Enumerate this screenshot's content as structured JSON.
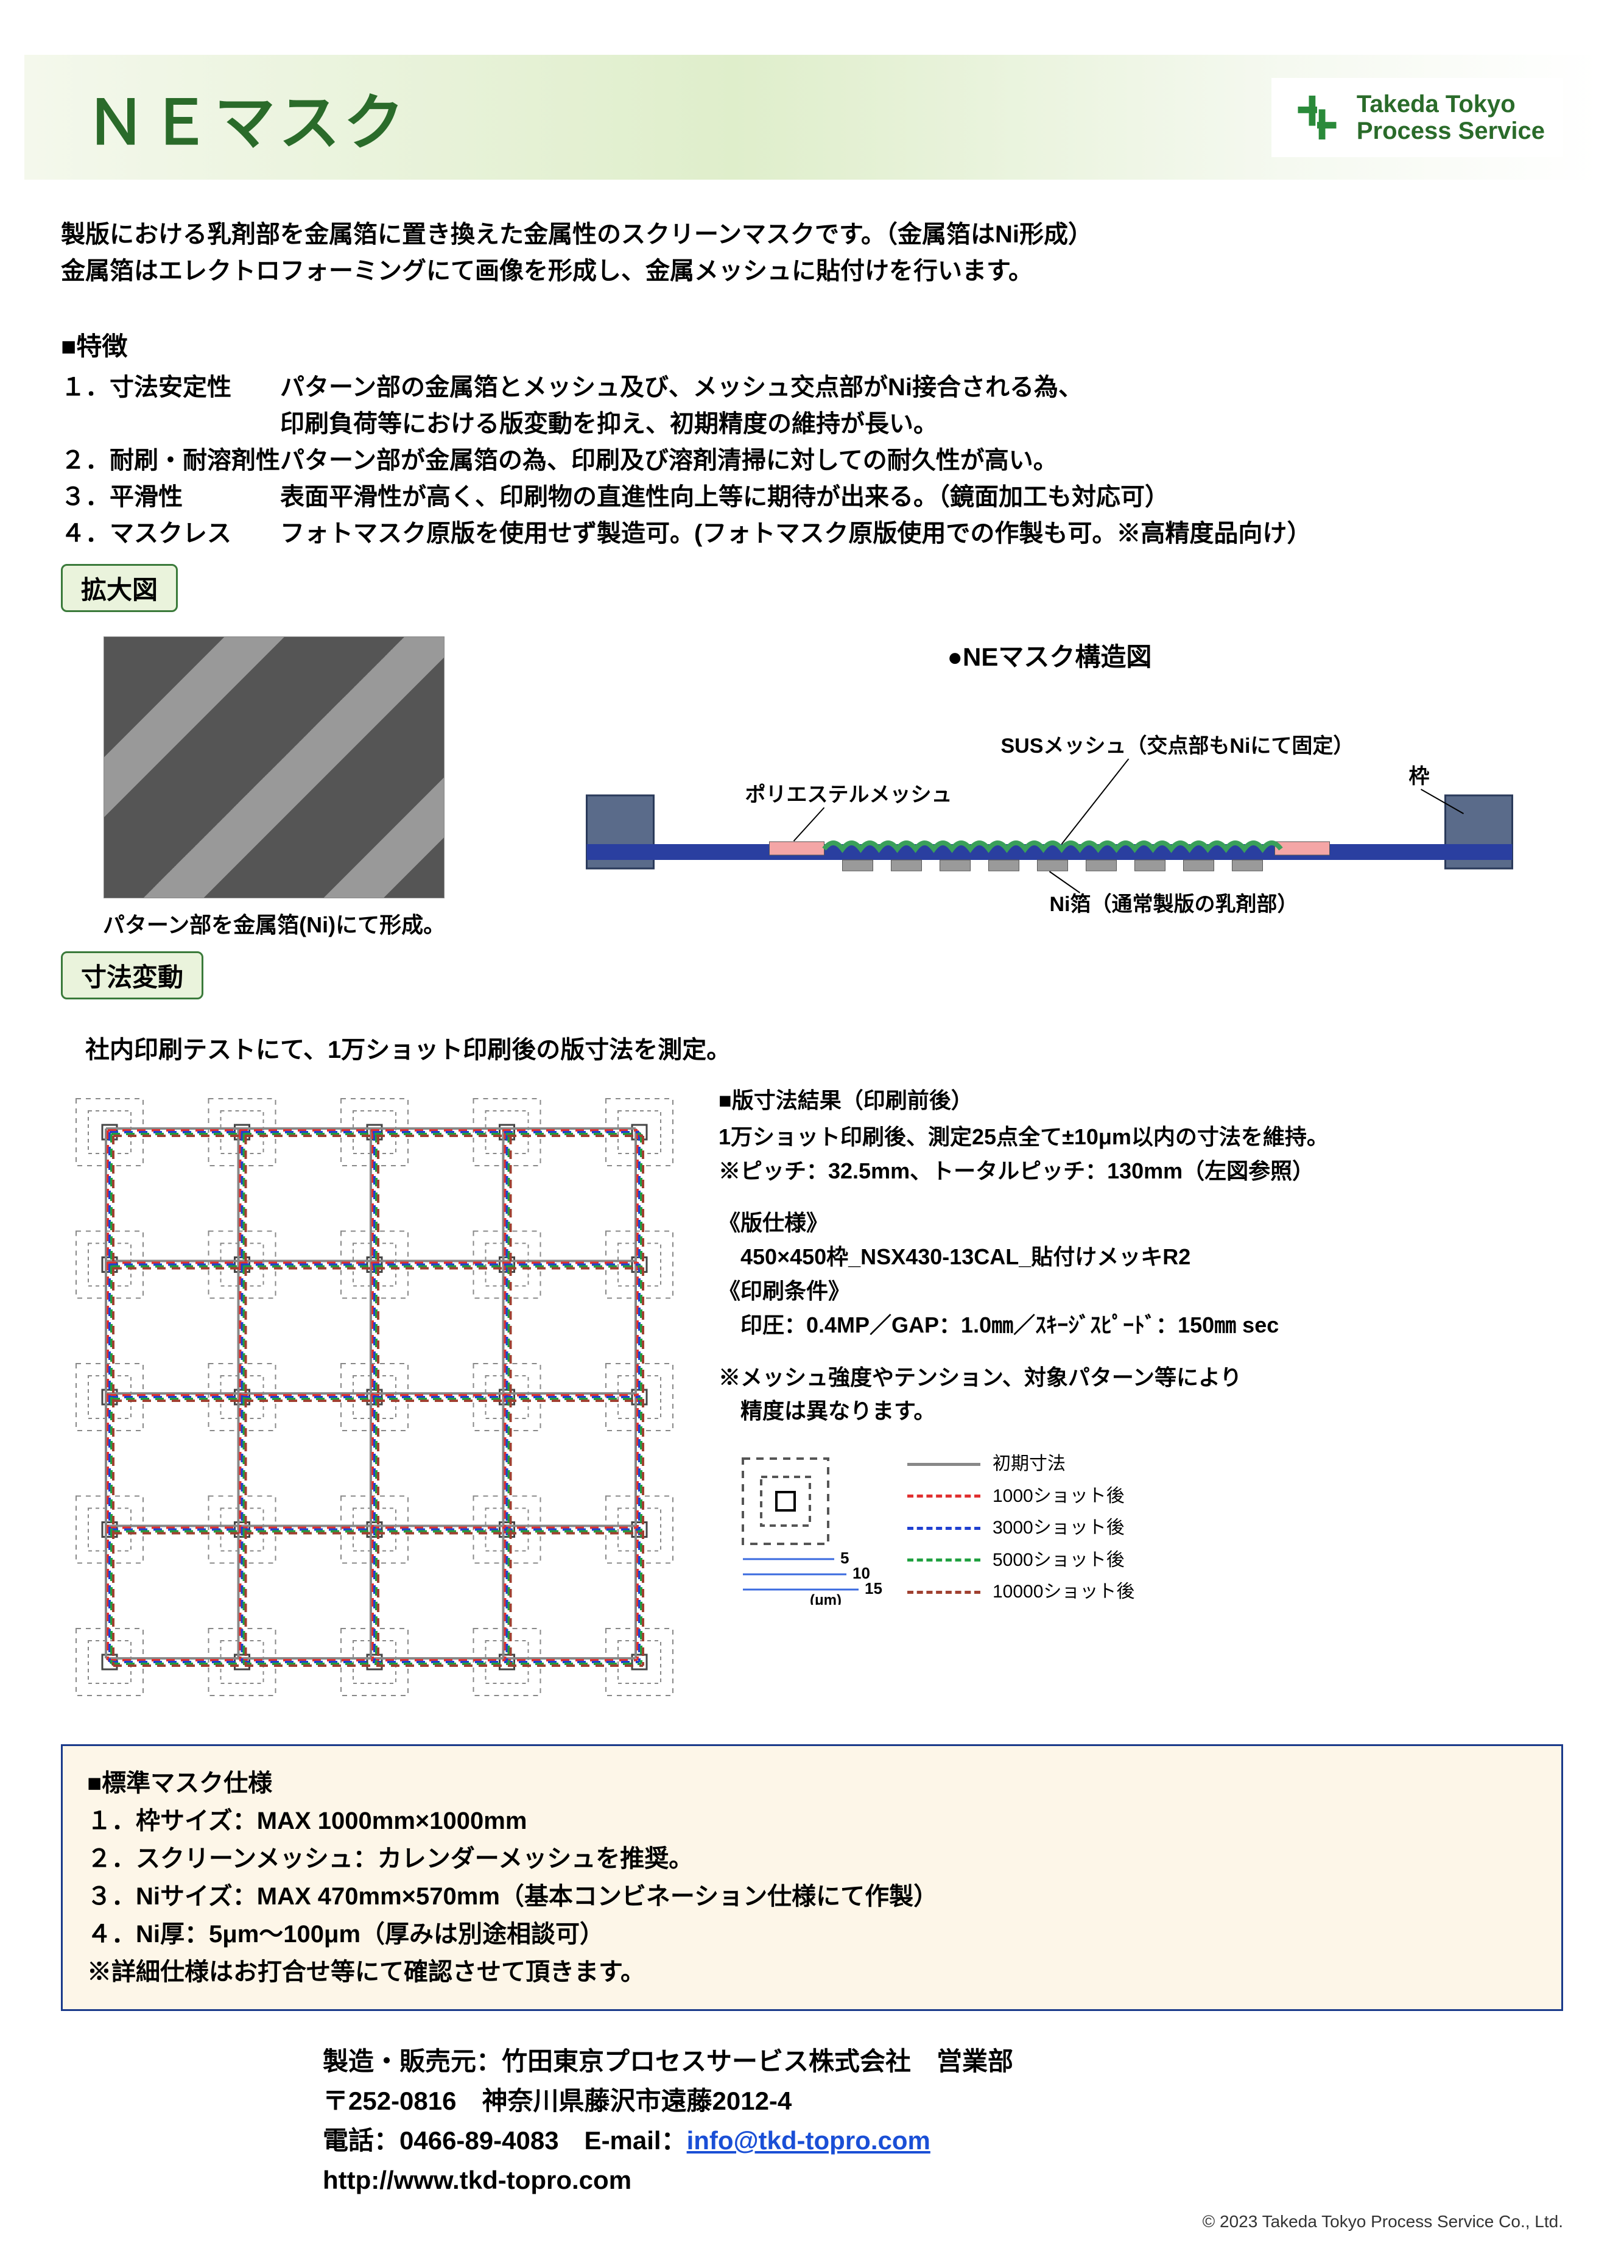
{
  "header": {
    "title": "ＮＥマスク",
    "logo_line1": "Takeda Tokyo",
    "logo_line2": "Process Service",
    "logo_color": "#2a6b2a"
  },
  "intro": {
    "line1": "製版における乳剤部を金属箔に置き換えた金属性のスクリーンマスクです。（金属箔はNi形成）",
    "line2": "金属箔はエレクトロフォーミングにて画像を形成し、金属メッシュに貼付けを行います。"
  },
  "features": {
    "head": "■特徴",
    "items": [
      {
        "num": "１．寸法安定性",
        "desc1": "パターン部の金属箔とメッシュ及び、メッシュ交点部がNi接合される為、",
        "desc2": "印刷負荷等における版変動を抑え、初期精度の維持が長い。"
      },
      {
        "num": "２．耐刷・耐溶剤性",
        "desc1": "パターン部が金属箔の為、印刷及び溶剤清掃に対しての耐久性が高い。",
        "desc2": ""
      },
      {
        "num": "３．平滑性",
        "desc1": "表面平滑性が高く、印刷物の直進性向上等に期待が出来る。（鏡面加工も対応可）",
        "desc2": ""
      },
      {
        "num": "４．マスクレス",
        "desc1": "フォトマスク原版を使用せず製造可。(フォトマスク原版使用での作製も可。※高精度品向け）",
        "desc2": ""
      }
    ]
  },
  "zoom": {
    "label": "拡大図",
    "caption": "パターン部を金属箔(Ni)にて形成。"
  },
  "structure": {
    "title": "●NEマスク構造図",
    "label_poly": "ポリエステルメッシュ",
    "label_sus": "SUSメッシュ（交点部もNiにて固定）",
    "label_frame": "枠",
    "label_ni": "Ni箔（通常製版の乳剤部）",
    "colors": {
      "frame": "#5a6b8a",
      "frame_border": "#2a3a5a",
      "bar": "#2a3fa0",
      "poly_patch": "#f4a6a6",
      "sus_mesh": "#3aa05a",
      "ni": "#9a9a9a"
    }
  },
  "dimension": {
    "label": "寸法変動",
    "intro": "社内印刷テストにて、1万ショット印刷後の版寸法を測定。",
    "result_head": "■版寸法結果（印刷前後）",
    "result_1": "1万ショット印刷後、測定25点全て±10μm以内の寸法を維持。",
    "result_2": "※ピッチ：32.5mm、トータルピッチ：130mm（左図参照）",
    "spec_plate_head": "《版仕様》",
    "spec_plate": "　450×450枠_NSX430-13CAL_貼付けメッキR2",
    "spec_print_head": "《印刷条件》",
    "spec_print": "　印圧：0.4MP／GAP：1.0㎜／ｽｷｰｼﾞｽﾋﾟｰﾄﾞ：150㎜ sec",
    "note1": "※メッシュ強度やテンション、対象パターン等により",
    "note2": "　精度は異なります。",
    "legend": [
      {
        "label": "初期寸法",
        "color": "#888888",
        "dash": "solid"
      },
      {
        "label": "1000ショット後",
        "color": "#e03030",
        "dash": "dashed"
      },
      {
        "label": "3000ショット後",
        "color": "#2040d0",
        "dash": "dashed"
      },
      {
        "label": "5000ショット後",
        "color": "#20a040",
        "dash": "dashed"
      },
      {
        "label": "10000ショット後",
        "color": "#a04030",
        "dash": "dashed"
      }
    ],
    "small_axis": {
      "v5": "5",
      "v10": "10",
      "v15": "15",
      "unit": "(μm)"
    },
    "grid": {
      "cols": 5,
      "rows": 5,
      "line_colors": [
        "#888888",
        "#e03030",
        "#2040d0",
        "#20a040",
        "#a04030"
      ]
    }
  },
  "std_spec": {
    "head": "■標準マスク仕様",
    "l1": "１．枠サイズ：MAX 1000mm×1000mm",
    "l2": "２．スクリーンメッシュ：カレンダーメッシュを推奨。",
    "l3": "３．Niサイズ：MAX 470mm×570mm（基本コンビネーション仕様にて作製）",
    "l4": "４．Ni厚：5μm～100μm（厚みは別途相談可）",
    "l5": "※詳細仕様はお打合せ等にて確認させて頂きます。"
  },
  "contact": {
    "l1": "製造・販売元：竹田東京プロセスサービス株式会社　営業部",
    "l2": "〒252-0816　神奈川県藤沢市遠藤2012-4",
    "l3_pre": "電話：0466-89-4083　E-mail：",
    "email": "info@tkd-topro.com",
    "url": "http://www.tkd-topro.com"
  },
  "copyright": "© 2023 Takeda Tokyo Process Service Co., Ltd."
}
